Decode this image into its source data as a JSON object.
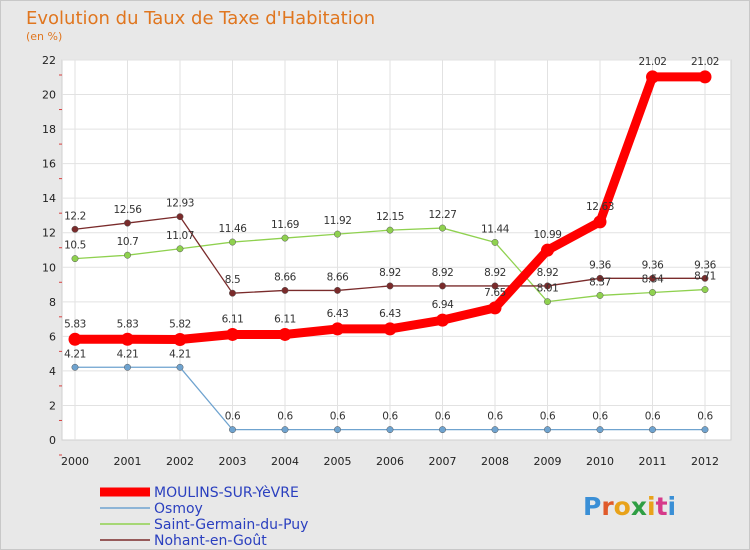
{
  "chart_data": {
    "type": "line",
    "title": "Evolution du Taux de Taxe d'Habitation",
    "subtitle": "(en %)",
    "xlabel": "",
    "ylabel": "(en %)",
    "ylim": [
      0,
      22
    ],
    "yticks": [
      "0",
      "2",
      "4",
      "6",
      "8",
      "10",
      "12",
      "14",
      "16",
      "18",
      "20",
      "22"
    ],
    "categories": [
      "2000",
      "2001",
      "2002",
      "2003",
      "2004",
      "2005",
      "2006",
      "2007",
      "2008",
      "2009",
      "2010",
      "2011",
      "2012"
    ],
    "grid": true,
    "legend_position": "bottom-left",
    "series": [
      {
        "name": "MOULINS-SUR-YèVRE",
        "color": "#ff0000",
        "values": [
          5.83,
          5.83,
          5.82,
          6.11,
          6.11,
          6.43,
          6.43,
          6.94,
          7.65,
          10.99,
          12.63,
          21.02,
          21.02
        ],
        "labels": [
          "5.83",
          "5.83",
          "5.82",
          "6.11",
          "6.11",
          "6.43",
          "6.43",
          "6.94",
          "7.65",
          "10.99",
          "12.63",
          "21.02",
          "21.02"
        ]
      },
      {
        "name": "Osmoy",
        "color": "#6fa3cf",
        "values": [
          4.21,
          4.21,
          4.21,
          0.6,
          0.6,
          0.6,
          0.6,
          0.6,
          0.6,
          0.6,
          0.6,
          0.6,
          0.6
        ],
        "labels": [
          "4.21",
          "4.21",
          "4.21",
          "0.6",
          "0.6",
          "0.6",
          "0.6",
          "0.6",
          "0.6",
          "0.6",
          "0.6",
          "0.6",
          "0.6"
        ]
      },
      {
        "name": "Saint-Germain-du-Puy",
        "color": "#8fd14f",
        "values": [
          10.5,
          10.7,
          11.07,
          11.46,
          11.69,
          11.92,
          12.15,
          12.27,
          11.44,
          8.01,
          8.37,
          8.54,
          8.71
        ],
        "labels": [
          "10.5",
          "10.7",
          "11.07",
          "11.46",
          "11.69",
          "11.92",
          "12.15",
          "12.27",
          "11.44",
          "8.01",
          "8.37",
          "8.54",
          "8.71"
        ]
      },
      {
        "name": "Nohant-en-Goût",
        "color": "#7a2b2b",
        "values": [
          12.2,
          12.56,
          12.93,
          8.5,
          8.66,
          8.66,
          8.92,
          8.92,
          8.92,
          8.92,
          9.36,
          9.36,
          9.36
        ],
        "labels": [
          "12.2",
          "12.56",
          "12.93",
          "8.5",
          "8.66",
          "8.66",
          "8.92",
          "8.92",
          "8.92",
          "8.92",
          "9.36",
          "9.36",
          "9.36"
        ]
      }
    ]
  },
  "brand": {
    "logo_text": "Proxiti",
    "letter_colors": [
      "#3a8fd6",
      "#e05a2a",
      "#e8a21a",
      "#2f9e44",
      "#e8a21a",
      "#d63a8a",
      "#3a8fd6"
    ]
  }
}
